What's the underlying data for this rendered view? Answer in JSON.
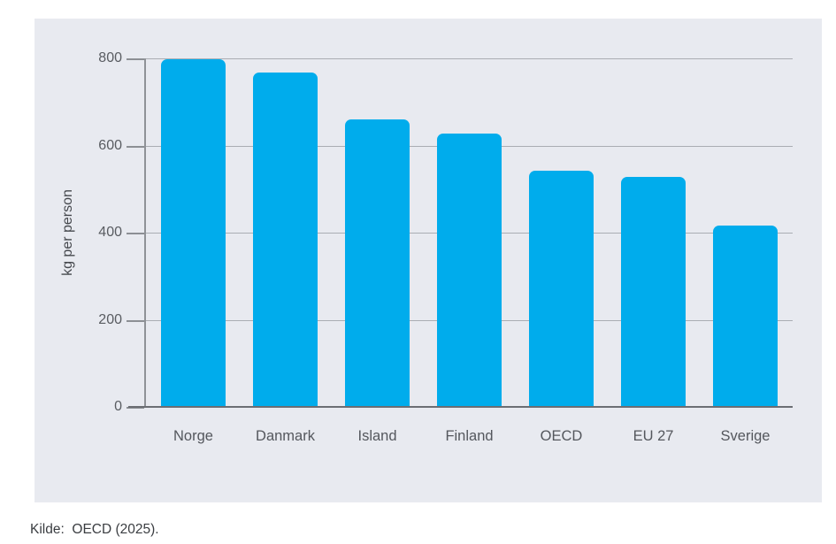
{
  "source_note": "Kilde:  OECD (2025).",
  "chart_data": {
    "type": "bar",
    "categories": [
      "Norge",
      "Danmark",
      "Island",
      "Finland",
      "OECD",
      "EU 27",
      "Sverige"
    ],
    "values": [
      798,
      768,
      660,
      628,
      543,
      527,
      417
    ],
    "title": "",
    "xlabel": "",
    "ylabel": "kg per person",
    "ylim": [
      0,
      800
    ],
    "yticks": [
      0,
      200,
      400,
      600,
      800
    ],
    "grid": true,
    "legend": false,
    "bar_color": "#00acec",
    "panel_background": "#e8eaf0",
    "gridline_color": "#aaadb3",
    "axis_color": "#6b6e73"
  }
}
